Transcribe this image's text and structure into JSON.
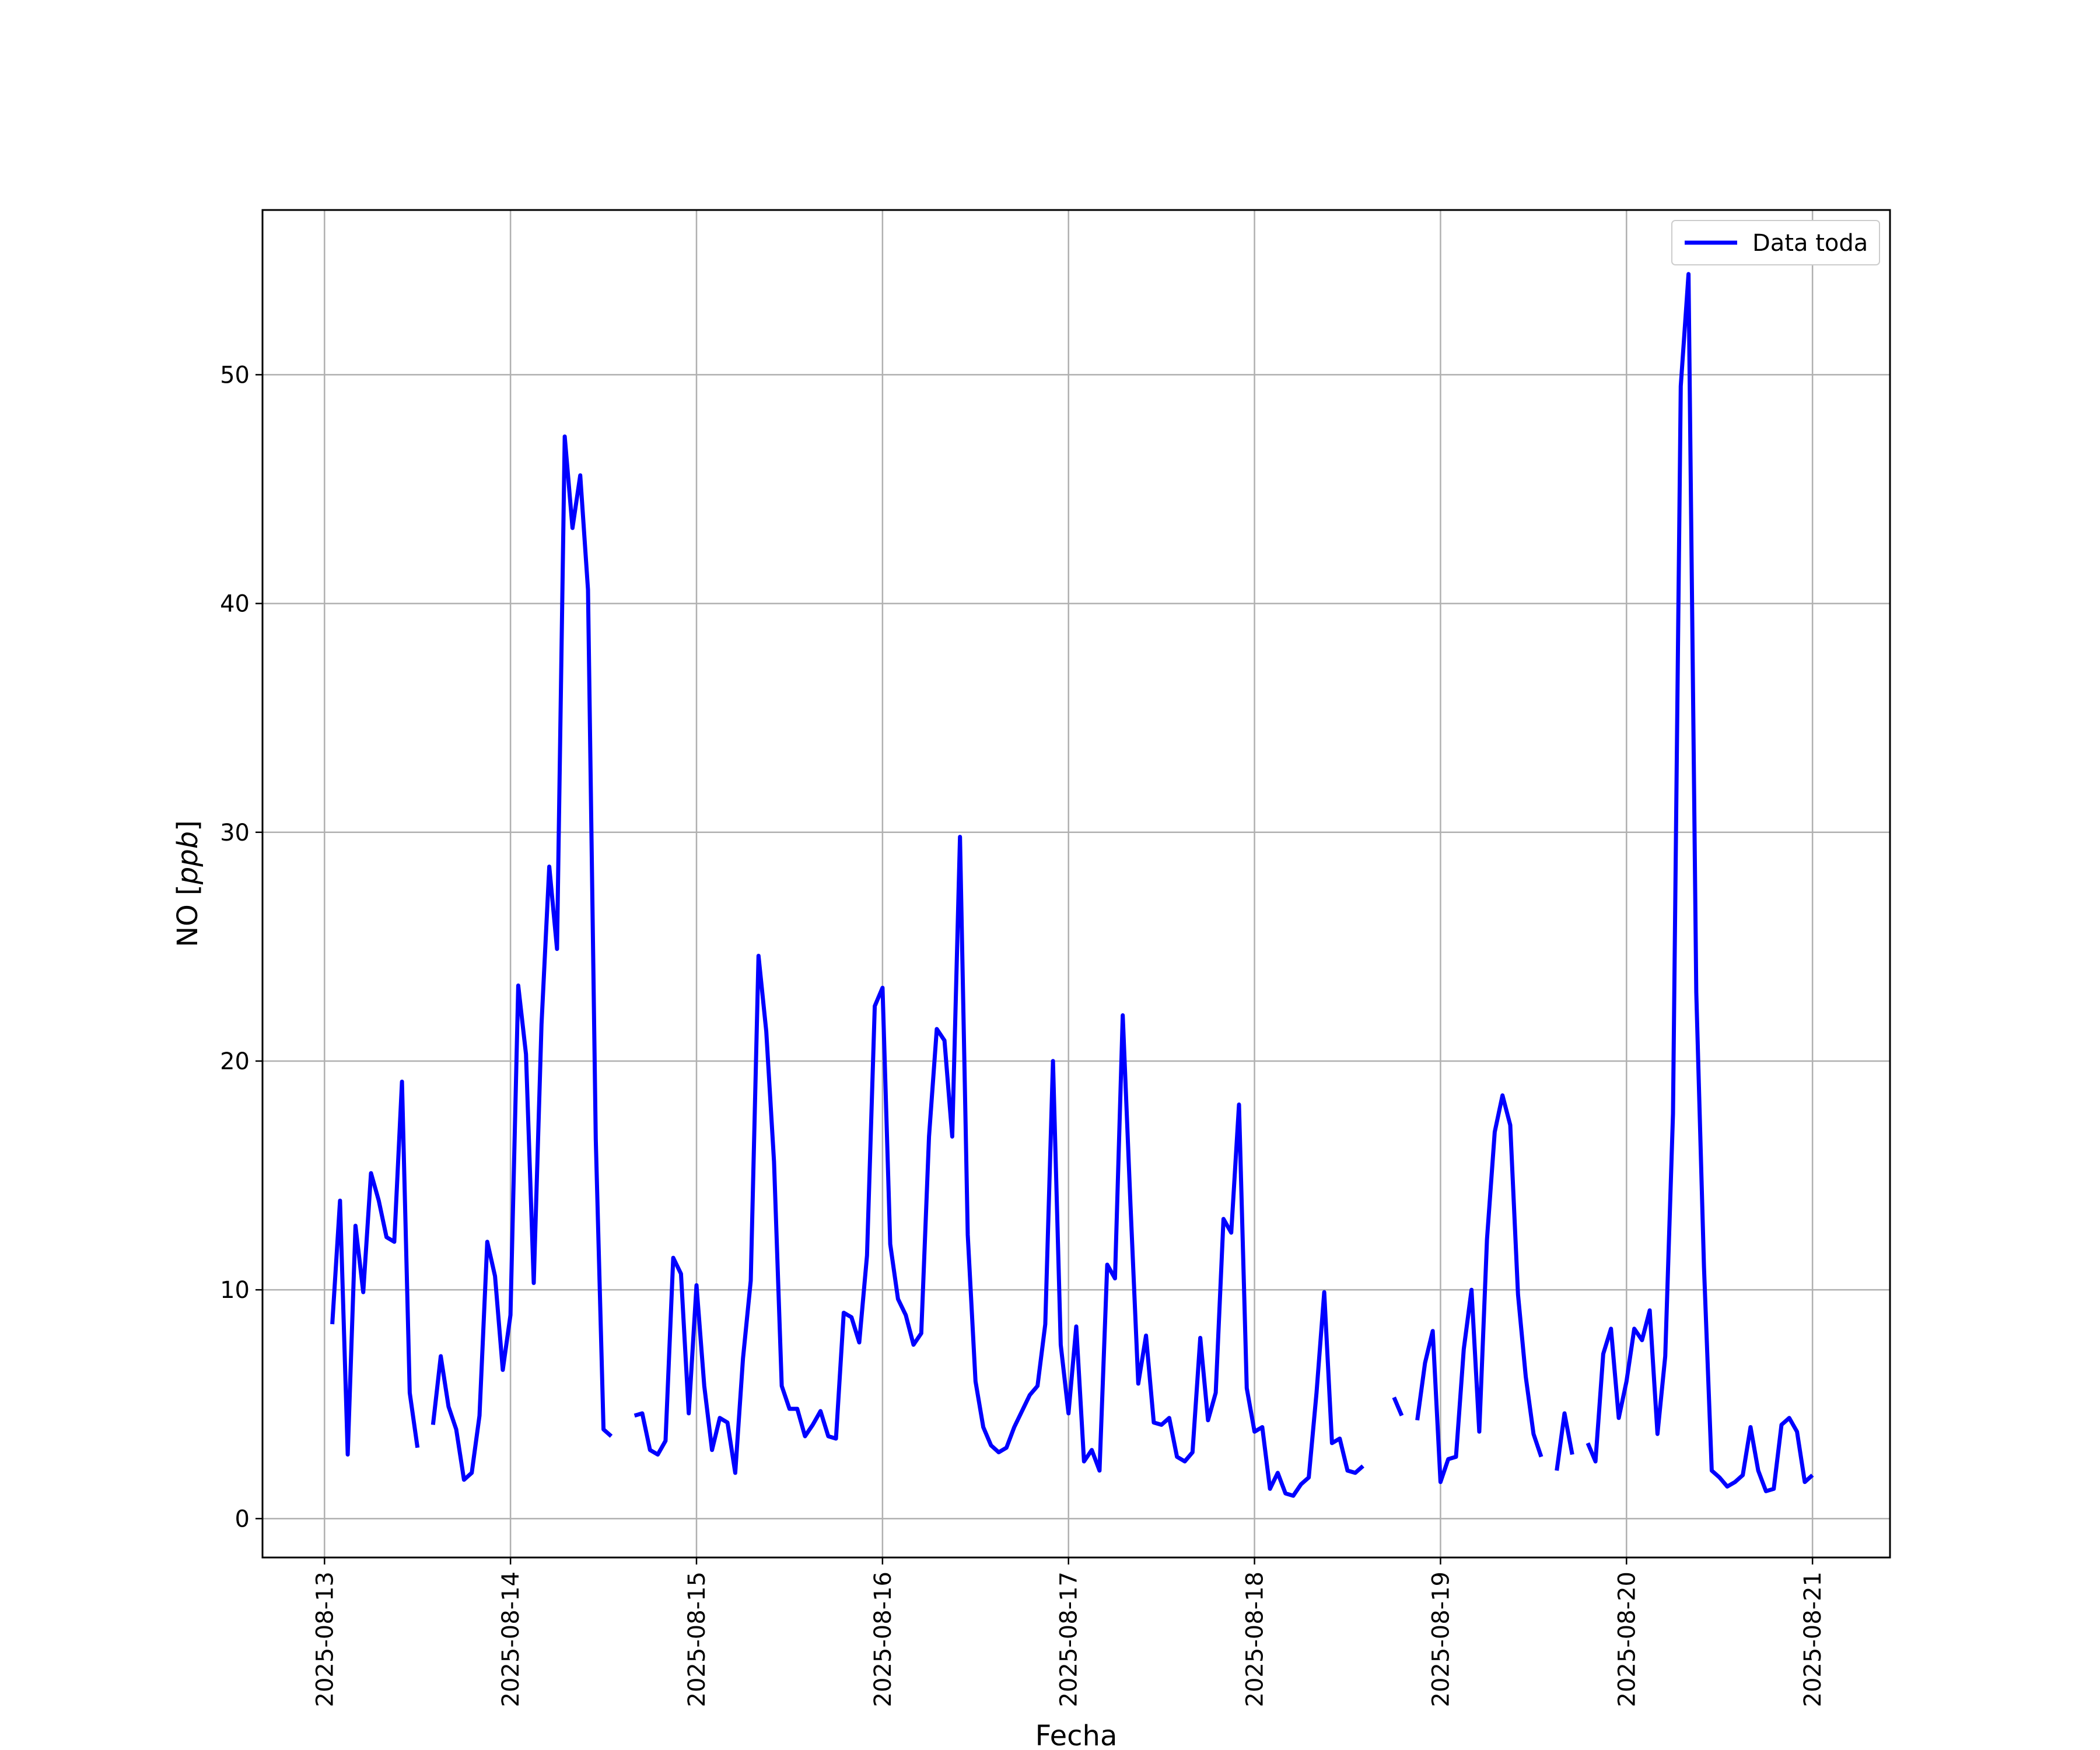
{
  "chart_data": {
    "type": "line",
    "title": "",
    "xlabel": "Fecha",
    "ylabel_main": "NO [",
    "ylabel_unit": "ppb",
    "ylabel_close": "]",
    "xlim": [
      "2025-08-12 16:00",
      "2025-08-21 10:00"
    ],
    "ylim": [
      -1.7,
      57.2
    ],
    "grid": true,
    "legend_position": "top-right",
    "x_ticks": [
      "2025-08-13",
      "2025-08-14",
      "2025-08-15",
      "2025-08-16",
      "2025-08-17",
      "2025-08-18",
      "2025-08-19",
      "2025-08-20",
      "2025-08-21"
    ],
    "y_ticks": [
      "0",
      "10",
      "20",
      "30",
      "40",
      "50"
    ],
    "y_tick_values": [
      0,
      10,
      20,
      30,
      40,
      50
    ],
    "series": [
      {
        "name": "Data toda",
        "color": "#0000ff",
        "x_start": "2025-08-13 01:00",
        "interval_hours": 1,
        "values": [
          8.5,
          13.9,
          2.8,
          12.8,
          9.9,
          15.1,
          13.9,
          12.3,
          12.1,
          19.1,
          5.5,
          3.1,
          null,
          4.1,
          7.1,
          4.9,
          3.9,
          1.7,
          2.0,
          4.5,
          12.1,
          10.6,
          6.5,
          8.9,
          23.3,
          20.3,
          10.3,
          21.6,
          28.5,
          24.9,
          47.3,
          43.3,
          45.6,
          40.6,
          16.6,
          3.9,
          3.6,
          null,
          null,
          4.5,
          4.6,
          3.0,
          2.8,
          3.4,
          11.4,
          10.7,
          4.6,
          10.2,
          5.8,
          3.0,
          4.4,
          4.2,
          2.0,
          7.0,
          10.4,
          24.6,
          21.3,
          15.6,
          5.8,
          4.8,
          4.8,
          3.6,
          4.1,
          4.7,
          3.6,
          3.5,
          9.0,
          8.8,
          7.7,
          11.5,
          22.4,
          23.2,
          12.0,
          9.6,
          8.9,
          7.6,
          8.1,
          16.7,
          21.4,
          20.9,
          16.7,
          29.8,
          12.4,
          6.0,
          4.0,
          3.2,
          2.9,
          3.1,
          4.0,
          4.7,
          5.4,
          5.8,
          8.5,
          20.0,
          7.6,
          4.6,
          8.4,
          2.5,
          3.0,
          2.1,
          11.1,
          10.5,
          22.0,
          13.7,
          5.9,
          8.0,
          4.2,
          4.1,
          4.4,
          2.7,
          2.5,
          2.9,
          7.9,
          4.3,
          5.5,
          13.1,
          12.5,
          18.1,
          5.7,
          3.8,
          4.0,
          1.3,
          2.0,
          1.1,
          1.0,
          1.5,
          1.8,
          5.5,
          9.9,
          3.3,
          3.5,
          2.1,
          2.0,
          2.3,
          null,
          null,
          null,
          5.3,
          4.5,
          null,
          4.3,
          6.8,
          8.2,
          1.6,
          2.6,
          2.7,
          7.4,
          10.0,
          3.8,
          12.2,
          16.9,
          18.5,
          17.2,
          9.8,
          6.2,
          3.7,
          2.7,
          null,
          2.1,
          4.6,
          2.8,
          null,
          3.3,
          2.5,
          7.2,
          8.3,
          4.4,
          6.0,
          8.3,
          7.8,
          9.1,
          3.7,
          7.1,
          17.7,
          49.5,
          54.4,
          23.0,
          11.0,
          2.1,
          1.8,
          1.4,
          1.6,
          1.9,
          4.0,
          2.1,
          1.2,
          1.3,
          4.1,
          4.4,
          3.8,
          1.6,
          1.9
        ]
      }
    ]
  }
}
